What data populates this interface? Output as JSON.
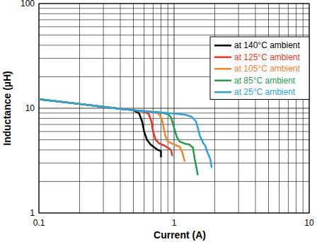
{
  "chart_data": {
    "type": "line",
    "x_label": "Current (A)",
    "y_label": "Inductance (µH)",
    "log": true,
    "grid": true,
    "legend": "upper right",
    "xlim": [
      0.1,
      10
    ],
    "ylim": [
      1,
      100
    ],
    "xticks": [
      0.1,
      1,
      10
    ],
    "yticks": [
      1,
      10,
      100
    ],
    "series": [
      {
        "name": "at 140°C ambient",
        "color": "#000000",
        "x": [
          0.1,
          0.2,
          0.3,
          0.4,
          0.5,
          0.55,
          0.58,
          0.6,
          0.63,
          0.67,
          0.72,
          0.76,
          0.8,
          0.8
        ],
        "values": [
          12.2,
          11,
          10.3,
          9.9,
          9.6,
          9.0,
          7.5,
          6.0,
          5.0,
          4.5,
          4.2,
          4.0,
          3.9,
          3.4
        ]
      },
      {
        "name": "at 125°C ambient",
        "color": "#f0331e",
        "x": [
          0.1,
          0.2,
          0.3,
          0.4,
          0.5,
          0.6,
          0.65,
          0.68,
          0.7,
          0.73,
          0.78,
          0.85,
          0.9,
          0.95,
          0.97
        ],
        "values": [
          12.2,
          11,
          10.3,
          9.9,
          9.6,
          9.3,
          8.8,
          7.5,
          6.0,
          5.0,
          4.6,
          4.4,
          4.2,
          4.0,
          3.5
        ]
      },
      {
        "name": "at 105°C ambient",
        "color": "#f5822a",
        "x": [
          0.1,
          0.2,
          0.3,
          0.4,
          0.5,
          0.6,
          0.7,
          0.78,
          0.82,
          0.86,
          0.9,
          1.0,
          1.1,
          1.15,
          1.2
        ],
        "values": [
          12.2,
          11,
          10.3,
          9.9,
          9.6,
          9.4,
          9.2,
          8.8,
          7.5,
          5.5,
          4.8,
          4.5,
          4.3,
          3.8,
          3.1
        ]
      },
      {
        "name": "at 85°C ambient",
        "color": "#1f9e4b",
        "x": [
          0.1,
          0.2,
          0.3,
          0.4,
          0.5,
          0.6,
          0.7,
          0.8,
          0.9,
          0.95,
          1.0,
          1.05,
          1.1,
          1.2,
          1.3,
          1.38,
          1.42,
          1.5
        ],
        "values": [
          12.2,
          11,
          10.3,
          9.9,
          9.6,
          9.4,
          9.2,
          9.1,
          8.8,
          8.2,
          6.5,
          5.3,
          4.8,
          4.6,
          4.5,
          4.2,
          3.3,
          2.3
        ]
      },
      {
        "name": "at 25°C ambient",
        "color": "#2aa3e0",
        "x": [
          0.1,
          0.2,
          0.3,
          0.4,
          0.5,
          0.6,
          0.7,
          0.8,
          1.0,
          1.2,
          1.35,
          1.45,
          1.5,
          1.55,
          1.6,
          1.65,
          1.7,
          1.75,
          1.85,
          1.9
        ],
        "values": [
          12.2,
          11,
          10.3,
          9.9,
          9.6,
          9.4,
          9.2,
          9.1,
          8.9,
          8.7,
          8.3,
          7.5,
          6.5,
          5.5,
          5.0,
          4.6,
          4.4,
          3.9,
          3.3,
          2.7
        ]
      }
    ]
  }
}
